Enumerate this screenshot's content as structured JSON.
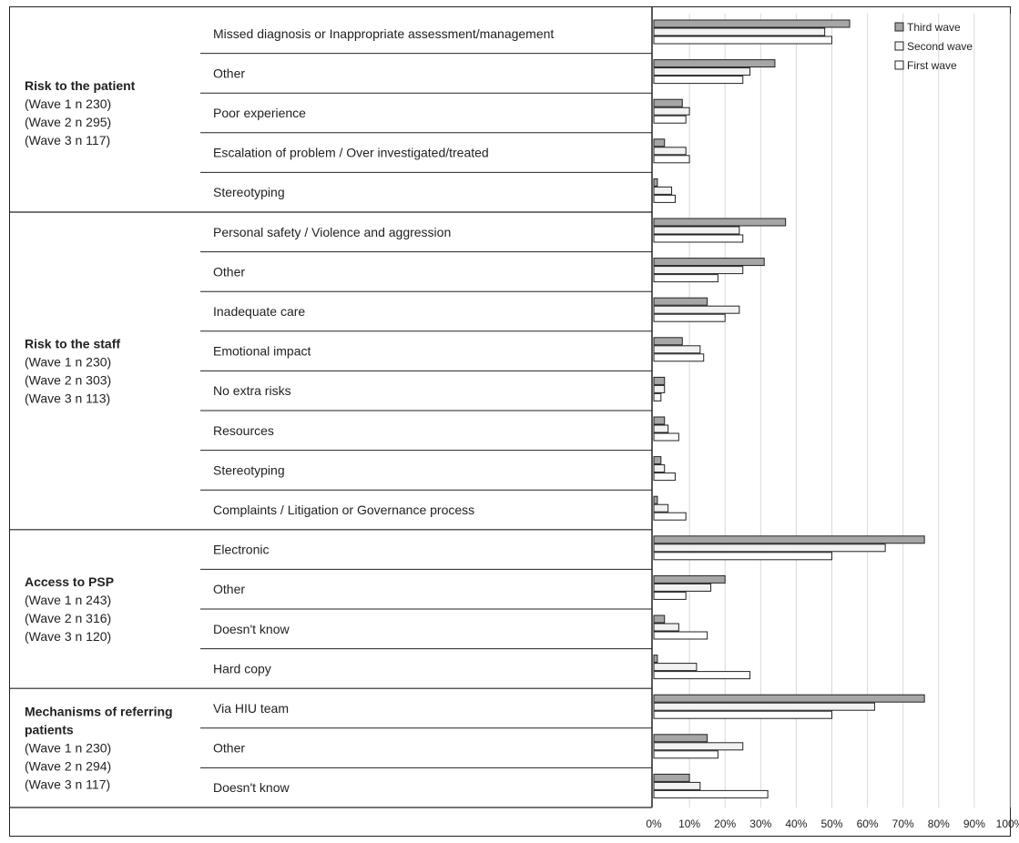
{
  "chart_data": {
    "type": "bar",
    "orientation": "horizontal",
    "legend_position": "top-right",
    "grid": true,
    "xlim": [
      0,
      100
    ],
    "x_ticks": [
      "0%",
      "10%",
      "20%",
      "30%",
      "40%",
      "50%",
      "60%",
      "70%",
      "80%",
      "90%",
      "100%"
    ],
    "series_names": [
      "Third wave",
      "Second wave",
      "First wave"
    ],
    "series_colors": [
      "#a6a6a6",
      "#f2f2f2",
      "#ffffff"
    ],
    "groups": [
      {
        "title": "Risk to the patient",
        "notes": [
          "(Wave 1 n 230)",
          "(Wave 2 n 295)",
          "(Wave 3 n 117)"
        ],
        "rows": [
          {
            "label": "Missed diagnosis or Inappropriate assessment/management",
            "values": [
              55,
              48,
              50
            ]
          },
          {
            "label": "Other",
            "values": [
              34,
              27,
              25
            ]
          },
          {
            "label": "Poor experience",
            "values": [
              8,
              10,
              9
            ]
          },
          {
            "label": "Escalation of problem / Over investigated/treated",
            "values": [
              3,
              9,
              10
            ]
          },
          {
            "label": "Stereotyping",
            "values": [
              1,
              5,
              6
            ]
          }
        ]
      },
      {
        "title": "Risk to the staff",
        "notes": [
          "(Wave 1 n 230)",
          "(Wave 2 n 303)",
          "(Wave 3 n 113)"
        ],
        "rows": [
          {
            "label": "Personal safety / Violence and aggression",
            "values": [
              37,
              24,
              25
            ]
          },
          {
            "label": "Other",
            "values": [
              31,
              25,
              18
            ]
          },
          {
            "label": "Inadequate care",
            "values": [
              15,
              24,
              20
            ]
          },
          {
            "label": "Emotional impact",
            "values": [
              8,
              13,
              14
            ]
          },
          {
            "label": "No extra risks",
            "values": [
              3,
              3,
              2
            ]
          },
          {
            "label": "Resources",
            "values": [
              3,
              4,
              7
            ]
          },
          {
            "label": "Stereotyping",
            "values": [
              2,
              3,
              6
            ]
          },
          {
            "label": "Complaints / Litigation or Governance process",
            "values": [
              1,
              4,
              9
            ]
          }
        ]
      },
      {
        "title": "Access to PSP",
        "notes": [
          "(Wave 1 n 243)",
          "(Wave 2 n 316)",
          "(Wave 3 n 120)"
        ],
        "rows": [
          {
            "label": "Electronic",
            "values": [
              76,
              65,
              50
            ]
          },
          {
            "label": "Other",
            "values": [
              20,
              16,
              9
            ]
          },
          {
            "label": "Doesn't know",
            "values": [
              3,
              7,
              15
            ]
          },
          {
            "label": "Hard copy",
            "values": [
              1,
              12,
              27
            ]
          }
        ]
      },
      {
        "title": "Mechanisms of referring patients",
        "notes": [
          "(Wave 1 n 230)",
          "(Wave 2 n 294)",
          "(Wave 3 n 117)"
        ],
        "rows": [
          {
            "label": "Via HIU team",
            "values": [
              76,
              62,
              50
            ]
          },
          {
            "label": "Other",
            "values": [
              15,
              25,
              18
            ]
          },
          {
            "label": "Doesn't know",
            "values": [
              10,
              13,
              32
            ]
          }
        ]
      }
    ]
  }
}
